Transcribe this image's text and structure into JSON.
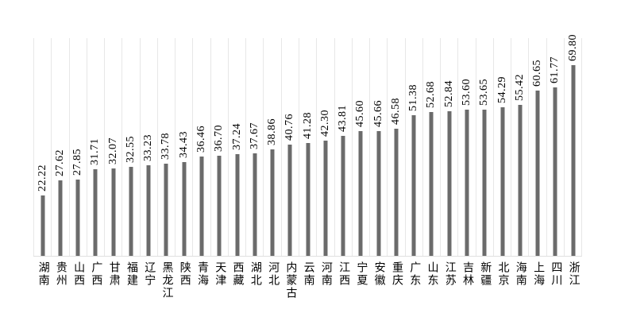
{
  "chart_data": {
    "type": "bar",
    "title": "",
    "xlabel": "",
    "ylabel": "",
    "ylim": [
      0,
      80
    ],
    "grid": "vertical category separator lines only",
    "legend": "none",
    "bar_color": "#6b6b6b",
    "separator_color": "#e7e7e7",
    "value_label_rotation": "90deg (reads bottom-to-top)",
    "category_label_orientation": "vertical stacked characters",
    "categories": [
      "湖南",
      "贵州",
      "山西",
      "广西",
      "甘肃",
      "福建",
      "辽宁",
      "黑龙江",
      "陕西",
      "青海",
      "天津",
      "西藏",
      "湖北",
      "河北",
      "内蒙古",
      "云南",
      "河南",
      "江西",
      "宁夏",
      "安徽",
      "重庆",
      "广东",
      "山东",
      "江苏",
      "吉林",
      "新疆",
      "北京",
      "海南",
      "上海",
      "四川",
      "浙江"
    ],
    "values": [
      22.22,
      27.62,
      27.85,
      31.71,
      32.07,
      32.55,
      33.23,
      33.78,
      34.43,
      36.46,
      36.7,
      37.24,
      37.67,
      38.86,
      40.76,
      41.28,
      42.3,
      43.81,
      45.6,
      45.66,
      46.58,
      51.38,
      52.68,
      52.84,
      53.6,
      53.65,
      54.29,
      55.42,
      60.65,
      61.77,
      69.8
    ],
    "value_labels": [
      "22.22",
      "27.62",
      "27.85",
      "31.71",
      "32.07",
      "32.55",
      "33.23",
      "33.78",
      "34.43",
      "36.46",
      "36.70",
      "37.24",
      "37.67",
      "38.86",
      "40.76",
      "41.28",
      "42.30",
      "43.81",
      "45.60",
      "45.66",
      "46.58",
      "51.38",
      "52.68",
      "52.84",
      "53.60",
      "53.65",
      "54.29",
      "55.42",
      "60.65",
      "61.77",
      "69.80"
    ]
  }
}
